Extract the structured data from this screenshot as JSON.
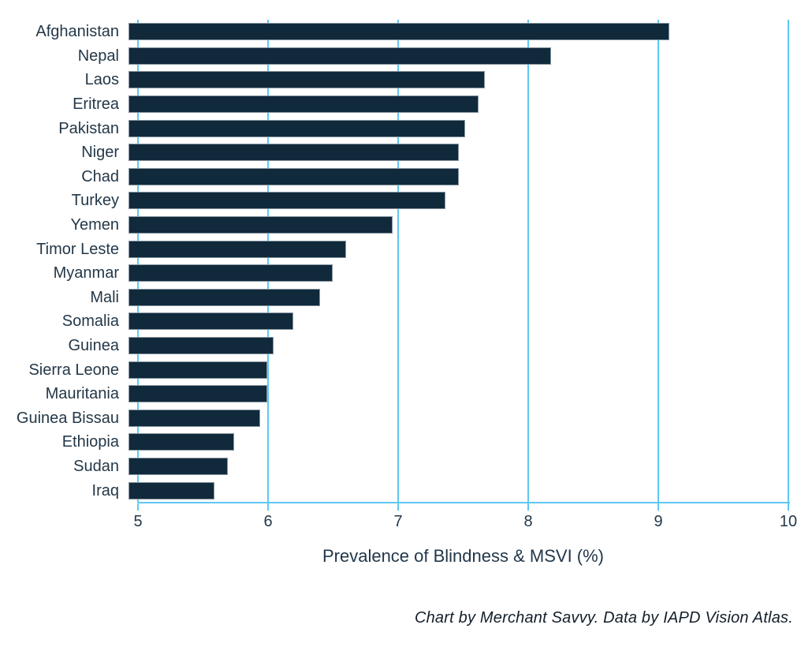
{
  "chart_data": {
    "type": "bar",
    "orientation": "horizontal",
    "title": "",
    "xlabel": "Prevalence of Blindness & MSVI (%)",
    "ylabel": "",
    "xlim": [
      5,
      10
    ],
    "xticks": [
      5,
      6,
      7,
      8,
      9,
      10
    ],
    "grid": "vertical",
    "legend": "none",
    "categories": [
      "Afghanistan",
      "Nepal",
      "Laos",
      "Eritrea",
      "Pakistan",
      "Niger",
      "Chad",
      "Turkey",
      "Yemen",
      "Timor Leste",
      "Myanmar",
      "Mali",
      "Somalia",
      "Guinea",
      "Sierra Leone",
      "Mauritania",
      "Guinea Bissau",
      "Ethiopia",
      "Sudan",
      "Iraq"
    ],
    "values": [
      9.1,
      8.2,
      7.7,
      7.65,
      7.55,
      7.5,
      7.5,
      7.4,
      7.0,
      6.65,
      6.55,
      6.45,
      6.25,
      6.1,
      6.05,
      6.05,
      6.0,
      5.8,
      5.75,
      5.65
    ]
  },
  "footer": {
    "credit": "Chart by Merchant Savvy. Data by IAPD Vision Atlas."
  },
  "colors": {
    "bar": "#102a3c",
    "grid": "#5ec8f2",
    "text": "#243848",
    "footer_text": "#131f2b"
  }
}
